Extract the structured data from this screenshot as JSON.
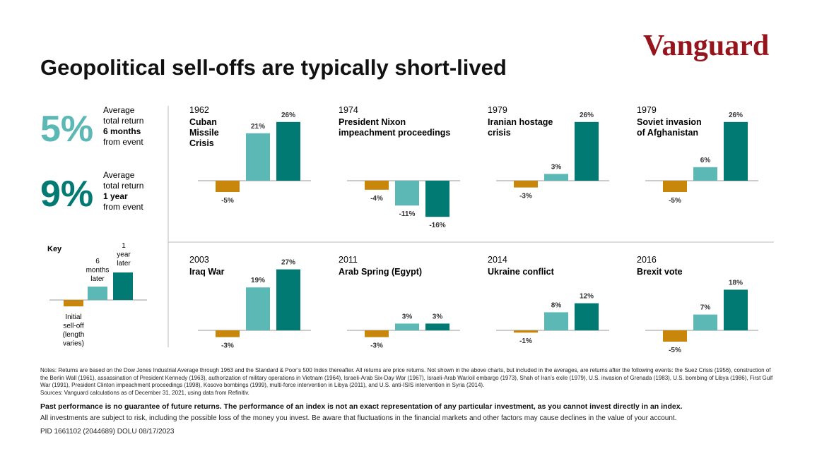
{
  "brand": "Vanguard",
  "title": "Geopolitical sell-offs are typically short-lived",
  "stats": [
    {
      "value": "5%",
      "color": "#5bb8b4",
      "lines": [
        "Average",
        "total return"
      ],
      "bold": "6 months",
      "post": "from event"
    },
    {
      "value": "9%",
      "color": "#007a73",
      "lines": [
        "Average",
        "total return"
      ],
      "bold": "1 year",
      "post": "from event"
    }
  ],
  "key": {
    "heading": "Key",
    "initial": [
      "Initial",
      "sell-off",
      "(length",
      "varies)"
    ],
    "six_months": [
      "6",
      "months",
      "later"
    ],
    "one_year": [
      "1",
      "year",
      "later"
    ]
  },
  "chart_data": [
    {
      "type": "bar",
      "year": "1962",
      "title": [
        "Cuban",
        "Missile",
        "Crisis"
      ],
      "values": [
        -5,
        21,
        26
      ],
      "value_labels": [
        "-5%",
        "21%",
        "26%"
      ],
      "colors": [
        "#c8860a",
        "#5bb8b4",
        "#007a73"
      ]
    },
    {
      "type": "bar",
      "year": "1974",
      "title": [
        "President Nixon",
        "impeachment proceedings"
      ],
      "values": [
        -4,
        -11,
        -16
      ],
      "value_labels": [
        "-4%",
        "-11%",
        "-16%"
      ],
      "colors": [
        "#c8860a",
        "#5bb8b4",
        "#007a73"
      ]
    },
    {
      "type": "bar",
      "year": "1979",
      "title": [
        "Iranian hostage",
        "crisis"
      ],
      "values": [
        -3,
        3,
        26
      ],
      "value_labels": [
        "-3%",
        "3%",
        "26%"
      ],
      "colors": [
        "#c8860a",
        "#5bb8b4",
        "#007a73"
      ]
    },
    {
      "type": "bar",
      "year": "1979",
      "title": [
        "Soviet invasion",
        "of Afghanistan"
      ],
      "values": [
        -5,
        6,
        26
      ],
      "value_labels": [
        "-5%",
        "6%",
        "26%"
      ],
      "colors": [
        "#c8860a",
        "#5bb8b4",
        "#007a73"
      ]
    },
    {
      "type": "bar",
      "year": "2003",
      "title": [
        "Iraq War"
      ],
      "values": [
        -3,
        19,
        27
      ],
      "value_labels": [
        "-3%",
        "19%",
        "27%"
      ],
      "colors": [
        "#c8860a",
        "#5bb8b4",
        "#007a73"
      ]
    },
    {
      "type": "bar",
      "year": "2011",
      "title": [
        "Arab Spring (Egypt)"
      ],
      "values": [
        -3,
        3,
        3
      ],
      "value_labels": [
        "-3%",
        "3%",
        "3%"
      ],
      "colors": [
        "#c8860a",
        "#5bb8b4",
        "#007a73"
      ]
    },
    {
      "type": "bar",
      "year": "2014",
      "title": [
        "Ukraine conflict"
      ],
      "values": [
        -1,
        8,
        12
      ],
      "value_labels": [
        "-1%",
        "8%",
        "12%"
      ],
      "colors": [
        "#c8860a",
        "#5bb8b4",
        "#007a73"
      ]
    },
    {
      "type": "bar",
      "year": "2016",
      "title": [
        "Brexit vote"
      ],
      "values": [
        -5,
        7,
        18
      ],
      "value_labels": [
        "-5%",
        "7%",
        "18%"
      ],
      "colors": [
        "#c8860a",
        "#5bb8b4",
        "#007a73"
      ]
    }
  ],
  "notes": "Notes: Returns are based on the Dow Jones Industrial Average through 1963 and the Standard & Poor’s 500 Index thereafter. All returns are price returns. Not shown in the above charts, but included in the averages, are returns after the following events: the Suez Crisis (1956), construction of the Berlin Wall (1961), assassination of President Kennedy (1963), authorization of military operations in Vietnam (1964), Israeli-Arab Six-Day War (1967), Israeli-Arab War/oil embargo (1973), Shah of Iran’s exile (1979), U.S. invasion of Grenada (1983), U.S. bombing of Libya (1986), First Gulf War (1991), President Clinton impeachment proceedings (1998), Kosovo bombings (1999), multi-force intervention in Libya (2011), and U.S. anti-ISIS intervention in Syria (2014).",
  "sources": "Sources: Vanguard calculations as of December 31, 2021, using data from Refinitiv.",
  "disclaimer_bold": "Past performance is no guarantee of future returns. The performance of an index is not an exact representation of any particular investment, as you cannot invest directly in an index.",
  "disclaimer": "All investments are subject to risk, including the possible loss of the money you invest. Be aware that fluctuations in the financial markets and other factors may cause declines in the value of your account.",
  "pid": "PID 1661102 (2044689) DOLU 08/17/2023"
}
